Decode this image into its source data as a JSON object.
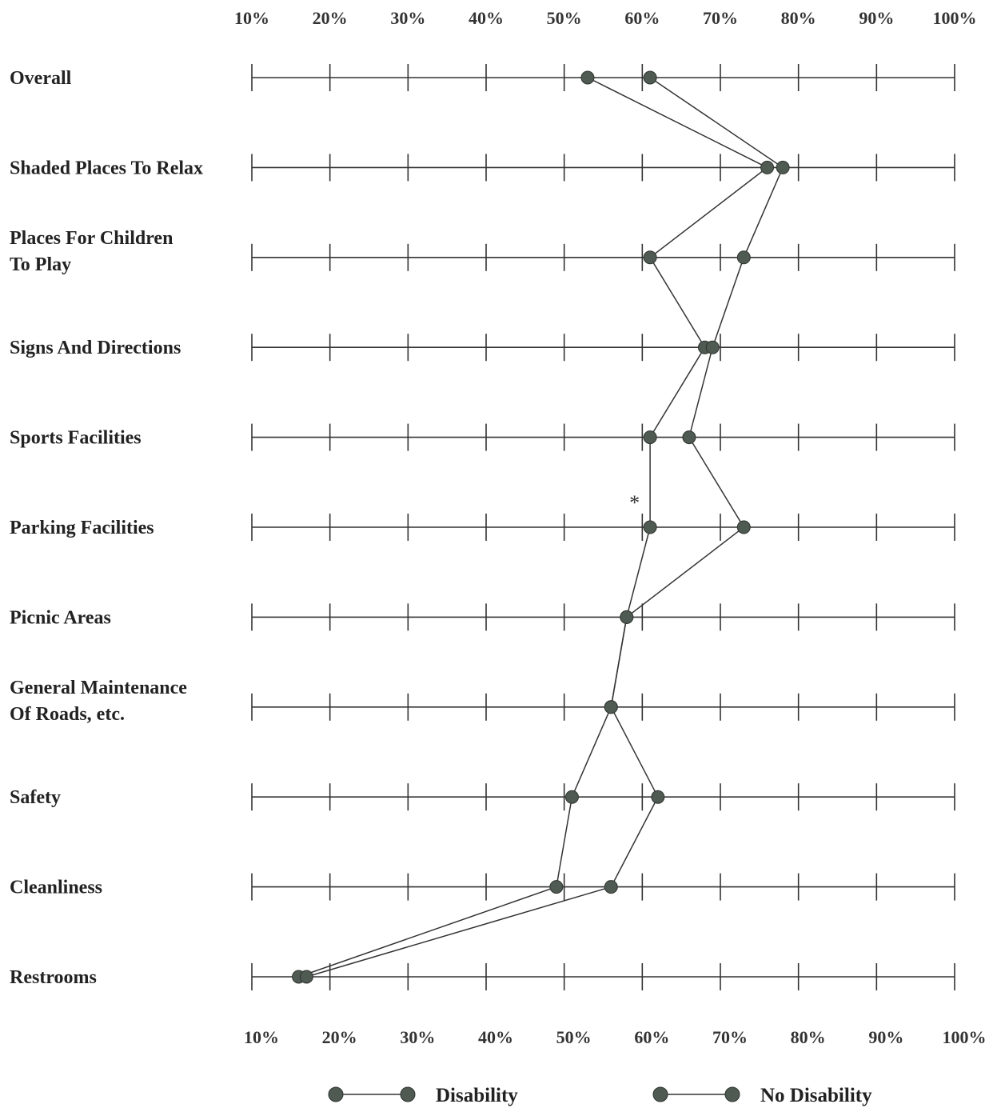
{
  "chart_data": {
    "type": "line",
    "orientation": "horizontal",
    "title": "",
    "xlabel": "",
    "ylabel": "",
    "xlim": [
      10,
      100
    ],
    "x_ticks": [
      "10%",
      "20%",
      "30%",
      "40%",
      "50%",
      "60%",
      "70%",
      "80%",
      "90%",
      "100%"
    ],
    "x_tick_values": [
      10,
      20,
      30,
      40,
      50,
      60,
      70,
      80,
      90,
      100
    ],
    "grid": false,
    "legend_position": "bottom",
    "categories": [
      [
        "Overall"
      ],
      [
        "Shaded Places To Relax"
      ],
      [
        "Places For Children",
        "To Play"
      ],
      [
        "Signs And Directions"
      ],
      [
        "Sports Facilities"
      ],
      [
        "Parking Facilities"
      ],
      [
        "Picnic Areas"
      ],
      [
        "General Maintenance",
        "Of Roads, etc."
      ],
      [
        "Safety"
      ],
      [
        "Cleanliness"
      ],
      [
        "Restrooms"
      ]
    ],
    "series": [
      {
        "name": "Disability",
        "values": [
          53,
          76,
          61,
          68,
          61,
          61,
          58,
          56,
          51,
          49,
          16
        ]
      },
      {
        "name": "No Disability",
        "values": [
          61,
          78,
          73,
          69,
          66,
          73,
          58,
          56,
          62,
          56,
          17
        ]
      }
    ],
    "annotations": [
      {
        "text": "*",
        "category_index": 5
      }
    ],
    "marker_color": "#4f5a52",
    "line_color": "#333333"
  }
}
